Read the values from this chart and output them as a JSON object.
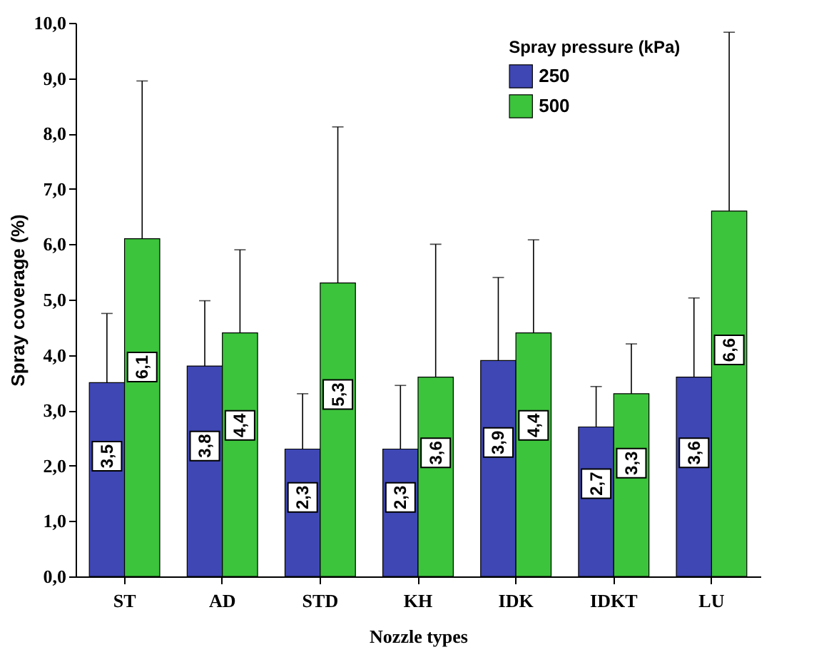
{
  "chart_data": {
    "type": "bar",
    "xlabel": "Nozzle types",
    "ylabel": "Spray coverage (%)",
    "legend_title": "Spray pressure (kPa)",
    "legend": "top right",
    "categories": [
      "ST",
      "AD",
      "STD",
      "KH",
      "IDK",
      "IDKT",
      "LU"
    ],
    "series": [
      {
        "name": "250",
        "color": "#3f47b4",
        "values": [
          3.5,
          3.8,
          2.3,
          2.3,
          3.9,
          2.7,
          3.6
        ],
        "value_labels": [
          "3,5",
          "3,8",
          "2,3",
          "2,3",
          "3,9",
          "2,7",
          "3,6"
        ],
        "errors": [
          [
            3.5,
            4.75
          ],
          [
            3.8,
            4.98
          ],
          [
            2.3,
            3.3
          ],
          [
            2.3,
            3.45
          ],
          [
            3.9,
            5.4
          ],
          [
            2.7,
            3.43
          ],
          [
            3.6,
            5.03
          ]
        ]
      },
      {
        "name": "500",
        "color": "#3cc43c",
        "values": [
          6.1,
          4.4,
          5.3,
          3.6,
          4.4,
          3.3,
          6.6
        ],
        "value_labels": [
          "6,1",
          "4,4",
          "5,3",
          "3,6",
          "4,4",
          "3,3",
          "6,6"
        ],
        "errors": [
          [
            6.1,
            8.95
          ],
          [
            4.4,
            5.9
          ],
          [
            5.3,
            8.12
          ],
          [
            3.6,
            6.0
          ],
          [
            4.4,
            6.08
          ],
          [
            3.3,
            4.2
          ],
          [
            6.6,
            9.83
          ]
        ]
      }
    ],
    "ylim": [
      0,
      10
    ],
    "yticks": [
      {
        "value": 0,
        "label": "0,0"
      },
      {
        "value": 1,
        "label": "1,0"
      },
      {
        "value": 2,
        "label": "2,0"
      },
      {
        "value": 3,
        "label": "3,0"
      },
      {
        "value": 4,
        "label": "4,0"
      },
      {
        "value": 5,
        "label": "5,0"
      },
      {
        "value": 6,
        "label": "6,0"
      },
      {
        "value": 7,
        "label": "7,0"
      },
      {
        "value": 8,
        "label": "8,0"
      },
      {
        "value": 9,
        "label": "9,0"
      },
      {
        "value": 10,
        "label": "10,0"
      }
    ],
    "grid": false
  }
}
